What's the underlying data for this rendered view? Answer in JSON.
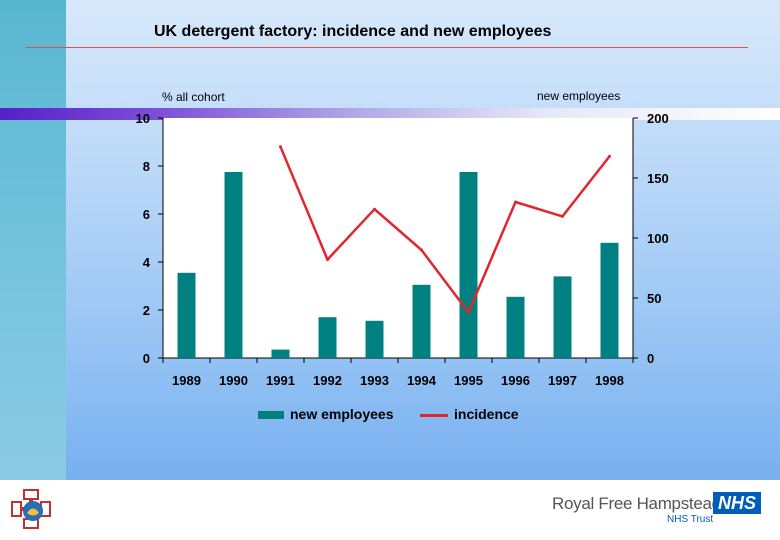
{
  "slide": {
    "title": "UK detergent factory: incidence and new employees"
  },
  "chart_data": {
    "type": "bar",
    "categories": [
      "1989",
      "1990",
      "1991",
      "1992",
      "1993",
      "1994",
      "1995",
      "1996",
      "1997",
      "1998"
    ],
    "y_left": {
      "label": "% all cohort",
      "ticks": [
        "0",
        "2",
        "4",
        "6",
        "8",
        "10"
      ],
      "range": [
        0,
        10
      ]
    },
    "y_right": {
      "label": "new employees",
      "ticks": [
        "0",
        "50",
        "100",
        "150",
        "200"
      ],
      "range": [
        0,
        200
      ]
    },
    "series": [
      {
        "name": "new employees",
        "type": "bar",
        "axis": "right",
        "color": "#008080",
        "values": [
          71,
          155,
          7,
          34,
          31,
          61,
          155,
          51,
          68,
          96
        ]
      },
      {
        "name": "incidence",
        "type": "line",
        "axis": "left",
        "color": "#e1262e",
        "values": [
          null,
          null,
          8.8,
          4.1,
          6.2,
          4.5,
          1.9,
          6.5,
          5.9,
          8.4
        ]
      }
    ],
    "legend_position": "bottom",
    "grid": false
  },
  "footer": {
    "org_name": "Royal Free Hampstead",
    "nhs_badge": "NHS",
    "nhs_trust": "NHS Trust",
    "logo_icon": "hospital-crest-icon"
  }
}
